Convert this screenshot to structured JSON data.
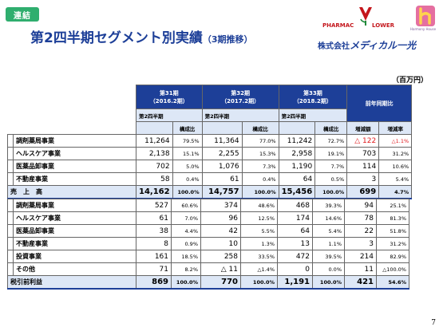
{
  "badge": "連結",
  "title": "第2四半期セグメント別実績",
  "title_sub": "（3期推移）",
  "logo": {
    "pharmac": "PHARMAC",
    "lower": "LOWER",
    "harmony": "Harmony House",
    "corp_prefix": "株式会社",
    "corp_brand": "メディカル一光"
  },
  "unit": "（百万円）",
  "headers": {
    "p31_line1": "第31期",
    "p31_line2": "（2016.2期）",
    "p32_line1": "第32期",
    "p32_line2": "（2017.2期）",
    "p33_line1": "第33期",
    "p33_line2": "（2018.2期）",
    "yoy": "前年同期比",
    "q2": "第2四半期",
    "ratio": "構成比",
    "change": "増減額",
    "rate": "増減率"
  },
  "sales_rows": [
    {
      "name": "調剤薬局事業",
      "v31": "11,264",
      "r31": "79.5%",
      "v32": "11,364",
      "r32": "77.0%",
      "v33": "11,242",
      "r33": "72.7%",
      "chg": "△ 122",
      "rate": "△1.1%",
      "neg": true
    },
    {
      "name": "ヘルスケア事業",
      "v31": "2,138",
      "r31": "15.1%",
      "v32": "2,255",
      "r32": "15.3%",
      "v33": "2,958",
      "r33": "19.1%",
      "chg": "703",
      "rate": "31.2%",
      "neg": false
    },
    {
      "name": "医薬品卸事業",
      "v31": "702",
      "r31": "5.0%",
      "v32": "1,076",
      "r32": "7.3%",
      "v33": "1,190",
      "r33": "7.7%",
      "chg": "114",
      "rate": "10.6%",
      "neg": false
    },
    {
      "name": "不動産事業",
      "v31": "58",
      "r31": "0.4%",
      "v32": "61",
      "r32": "0.4%",
      "v33": "64",
      "r33": "0.5%",
      "chg": "3",
      "rate": "5.4%",
      "neg": false
    }
  ],
  "sales_total": {
    "name": "売　上　高",
    "v31": "14,162",
    "r31": "100.0%",
    "v32": "14,757",
    "r32": "100.0%",
    "v33": "15,456",
    "r33": "100.0%",
    "chg": "699",
    "rate": "4.7%"
  },
  "profit_rows": [
    {
      "name": "調剤薬局事業",
      "v31": "527",
      "r31": "60.6%",
      "v32": "374",
      "r32": "48.6%",
      "v33": "468",
      "r33": "39.3%",
      "chg": "94",
      "rate": "25.1%"
    },
    {
      "name": "ヘルスケア事業",
      "v31": "61",
      "r31": "7.0%",
      "v32": "96",
      "r32": "12.5%",
      "v33": "174",
      "r33": "14.6%",
      "chg": "78",
      "rate": "81.3%"
    },
    {
      "name": "医薬品卸事業",
      "v31": "38",
      "r31": "4.4%",
      "v32": "42",
      "r32": "5.5%",
      "v33": "64",
      "r33": "5.4%",
      "chg": "22",
      "rate": "51.8%"
    },
    {
      "name": "不動産事業",
      "v31": "8",
      "r31": "0.9%",
      "v32": "10",
      "r32": "1.3%",
      "v33": "13",
      "r33": "1.1%",
      "chg": "3",
      "rate": "31.2%"
    },
    {
      "name": "投資事業",
      "v31": "161",
      "r31": "18.5%",
      "v32": "258",
      "r32": "33.5%",
      "v33": "472",
      "r33": "39.5%",
      "chg": "214",
      "rate": "82.9%"
    },
    {
      "name": "その他",
      "v31": "71",
      "r31": "8.2%",
      "v32": "△ 11",
      "r32": "△1.4%",
      "v33": "0",
      "r33": "0.0%",
      "chg": "11",
      "rate": "△100.0%"
    }
  ],
  "profit_total": {
    "name": "税引前利益",
    "v31": "869",
    "r31": "100.0%",
    "v32": "770",
    "r32": "100.0%",
    "v33": "1,191",
    "r33": "100.0%",
    "chg": "421",
    "rate": "54.6%"
  },
  "page_number": "7",
  "colors": {
    "brand_blue": "#1d3f98",
    "badge_green": "#2fae6e",
    "negative_red": "#e0191d",
    "header_light": "#dde7f6"
  }
}
